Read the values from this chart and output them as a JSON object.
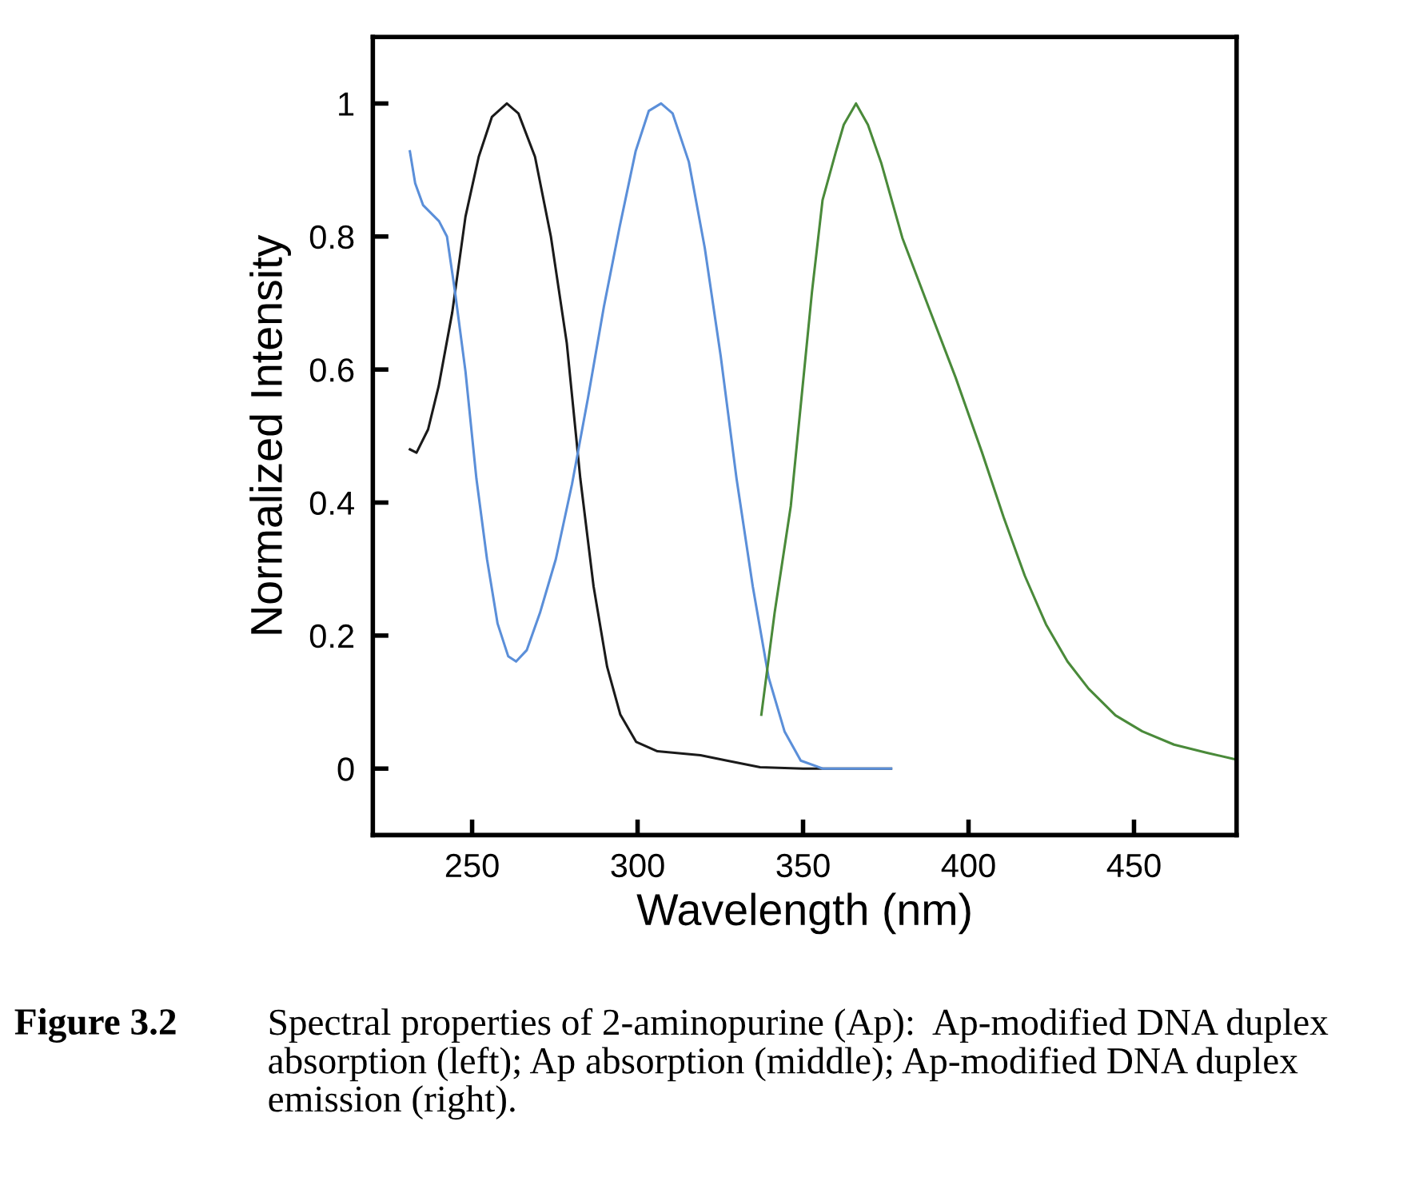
{
  "chart_data": {
    "type": "line",
    "xlabel": "Wavelength (nm)",
    "ylabel": "Normalized Intensity",
    "xlim": [
      220,
      481
    ],
    "ylim": [
      -0.1,
      1.1
    ],
    "xticks": [
      250,
      300,
      350,
      400,
      450
    ],
    "yticks": [
      0,
      0.2,
      0.4,
      0.6,
      0.8,
      1
    ],
    "grid": false,
    "legend": false,
    "marker": "none",
    "line_style": "solid",
    "series": [
      {
        "color": "#1a1a1a",
        "x": [
          231.2,
          233.2,
          236.7,
          239.9,
          244,
          248,
          252,
          256,
          260.5,
          264,
          269,
          273.8,
          278.6,
          282.7,
          286.7,
          290.8,
          294.8,
          299.6,
          306,
          319,
          327,
          337,
          350,
          376.6
        ],
        "values": [
          0.48,
          0.475,
          0.51,
          0.575,
          0.686,
          0.83,
          0.92,
          0.98,
          1.0,
          0.985,
          0.92,
          0.8,
          0.64,
          0.436,
          0.274,
          0.153,
          0.081,
          0.04,
          0.026,
          0.02,
          0.012,
          0.002,
          0,
          0
        ]
      },
      {
        "color": "#5b8fd9",
        "x": [
          231.2,
          232.8,
          235.2,
          240,
          242.4,
          244.8,
          248,
          251.3,
          254.5,
          257.7,
          260.9,
          263.3,
          266.5,
          270.5,
          275.3,
          280.2,
          285,
          289.8,
          294.6,
          299.4,
          303.4,
          307.1,
          310.6,
          315.5,
          320.3,
          325.1,
          329.9,
          334.8,
          339.6,
          344.4,
          349.3,
          355.9,
          376.6
        ],
        "values": [
          0.928,
          0.88,
          0.847,
          0.823,
          0.8,
          0.718,
          0.597,
          0.436,
          0.315,
          0.218,
          0.169,
          0.161,
          0.178,
          0.234,
          0.315,
          0.428,
          0.557,
          0.694,
          0.815,
          0.928,
          0.989,
          1.0,
          0.985,
          0.912,
          0.783,
          0.621,
          0.436,
          0.274,
          0.137,
          0.056,
          0.012,
          0,
          0
        ]
      },
      {
        "color": "#4a8a3a",
        "x": [
          337.4,
          341.4,
          346.3,
          349.5,
          352.7,
          355.9,
          359.9,
          362.3,
          366,
          369.6,
          373.6,
          380,
          388,
          396.1,
          404.1,
          410.6,
          417,
          423.4,
          429.9,
          436.3,
          444.4,
          452.5,
          462.1,
          471.8,
          480.6
        ],
        "values": [
          0.081,
          0.234,
          0.395,
          0.556,
          0.717,
          0.855,
          0.927,
          0.968,
          1.0,
          0.968,
          0.911,
          0.798,
          0.693,
          0.588,
          0.475,
          0.378,
          0.29,
          0.217,
          0.161,
          0.12,
          0.08,
          0.056,
          0.036,
          0.024,
          0.014
        ]
      }
    ],
    "annotations": [
      "Figure 3.2",
      "Spectral properties of 2-aminopurine (Ap):  Ap-modified DNA duplex absorption (left); Ap absorption (middle); Ap-modified DNA duplex emission (right)."
    ]
  }
}
